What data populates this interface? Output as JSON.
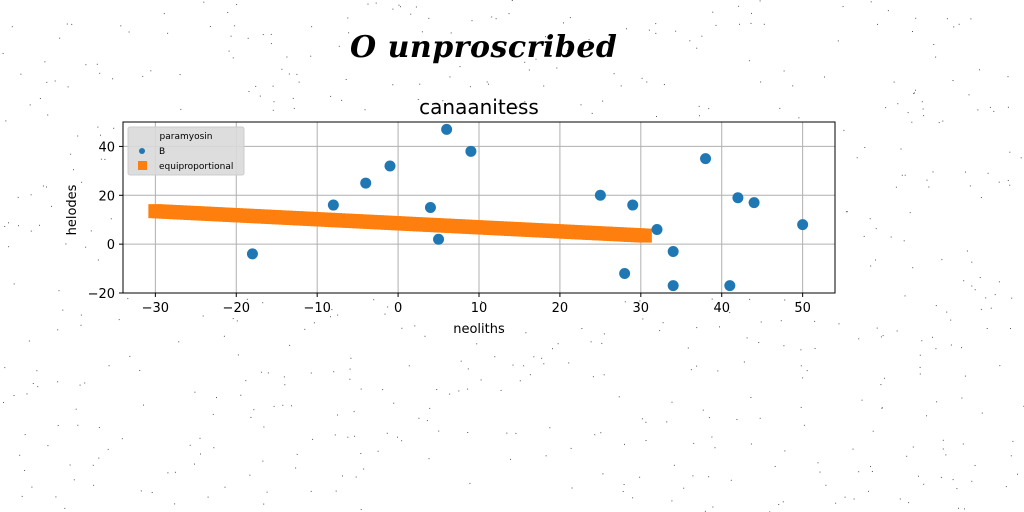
{
  "figure": {
    "suptitle": "O unproscribed"
  },
  "chart_data": {
    "type": "scatter",
    "title": "canaanitess",
    "xlabel": "neoliths",
    "ylabel": "helodes",
    "xlim": [
      -34,
      54
    ],
    "ylim": [
      -20,
      50
    ],
    "xticks": [
      -30,
      -20,
      -10,
      0,
      10,
      20,
      30,
      40,
      50
    ],
    "yticks": [
      -20,
      0,
      20,
      40
    ],
    "grid": true,
    "legend": {
      "title": "paramyosin",
      "position": "top-left"
    },
    "series": [
      {
        "name": "B",
        "marker": "circle",
        "color": "#1f77b4",
        "x": [
          -18,
          -8,
          -4,
          -1,
          4,
          5,
          6,
          9,
          25,
          28,
          29,
          32,
          34,
          34,
          38,
          41,
          42,
          44,
          50
        ],
        "y": [
          -4,
          16,
          25,
          32,
          15,
          2,
          47,
          38,
          20,
          -12,
          16,
          6,
          -3,
          -17,
          35,
          -17,
          19,
          17,
          8
        ]
      },
      {
        "name": "equiproportional",
        "marker": "square",
        "color": "#ff7f0e",
        "x_range": [
          -30,
          30.5
        ],
        "y_range": [
          13.5,
          3.5
        ],
        "n_points": 140
      }
    ]
  }
}
